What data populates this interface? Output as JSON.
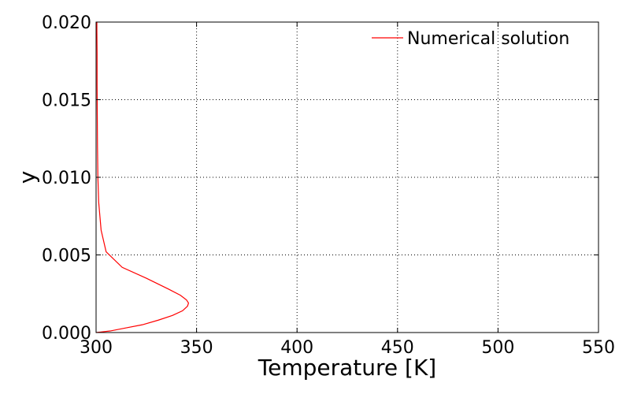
{
  "chart_data": {
    "type": "line",
    "xlabel": "Temperature [K]",
    "ylabel": "y",
    "xlim": [
      300,
      550
    ],
    "ylim": [
      0.0,
      0.02
    ],
    "xticks": [
      "300",
      "350",
      "400",
      "450",
      "500",
      "550"
    ],
    "yticks": [
      "0.000",
      "0.005",
      "0.010",
      "0.015",
      "0.020"
    ],
    "grid": true,
    "legend_position": "top-right",
    "series": [
      {
        "name": "Numerical solution",
        "color": "#ff0000",
        "x": [
          300.0,
          307.0,
          315.0,
          323.0,
          331.0,
          338.0,
          343.0,
          345.5,
          346.0,
          345.0,
          342.0,
          336.0,
          325.0,
          313.0,
          305.0,
          302.5,
          301.3,
          300.9,
          300.7,
          300.6,
          300.5,
          300.5,
          300.4,
          300.4
        ],
        "y": [
          0.0,
          0.0001,
          0.0003,
          0.0005,
          0.0008,
          0.0011,
          0.0014,
          0.0017,
          0.0019,
          0.0021,
          0.0024,
          0.0028,
          0.0035,
          0.0042,
          0.0052,
          0.0066,
          0.0084,
          0.01,
          0.012,
          0.014,
          0.016,
          0.018,
          0.0195,
          0.02
        ]
      }
    ]
  }
}
